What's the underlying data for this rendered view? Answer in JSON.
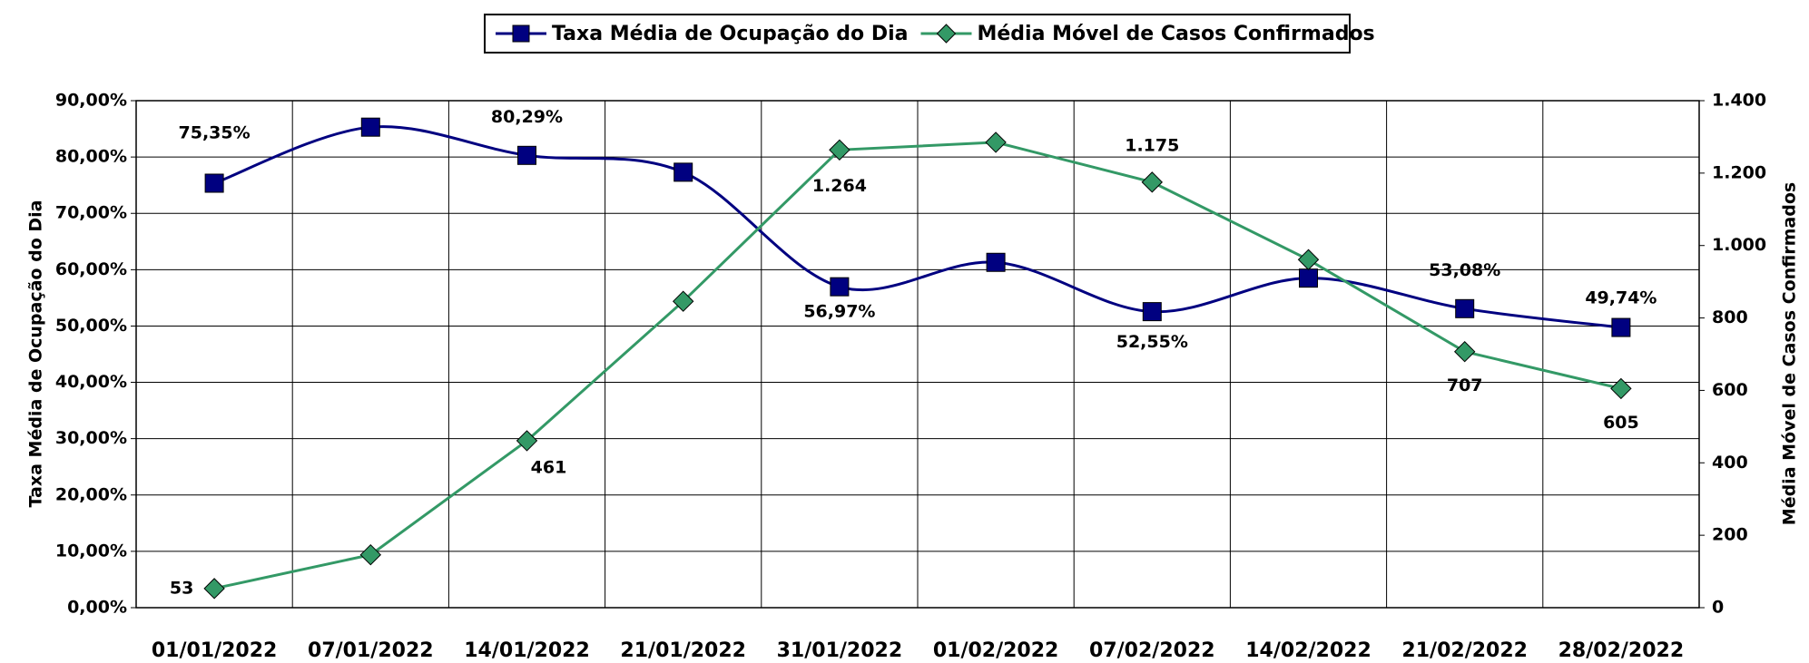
{
  "chart_data": {
    "type": "line",
    "categories": [
      "01/01/2022",
      "07/01/2022",
      "14/01/2022",
      "21/01/2022",
      "31/01/2022",
      "01/02/2022",
      "07/02/2022",
      "14/02/2022",
      "21/02/2022",
      "28/02/2022"
    ],
    "series": [
      {
        "name": "Taxa Média de Ocupação do Dia",
        "color": "#000080",
        "marker": "square",
        "smooth": true,
        "values": [
          75.35,
          85.3,
          80.29,
          77.3,
          56.97,
          61.3,
          52.55,
          58.5,
          53.08,
          49.74
        ],
        "value_labels": [
          "75,35%",
          null,
          "80,29%",
          null,
          "56,97%",
          null,
          "52,55%",
          null,
          "53,08%",
          "49,74%"
        ]
      },
      {
        "name": "Média Móvel de Casos Confirmados",
        "color": "#339966",
        "marker": "diamond",
        "smooth": false,
        "axis": "y2",
        "values": [
          53,
          146,
          461,
          846,
          1264,
          1285,
          1175,
          961,
          707,
          605
        ],
        "value_labels": [
          "53",
          null,
          "461",
          null,
          "1.264",
          null,
          "1.175",
          null,
          "707",
          "605"
        ]
      }
    ],
    "ylabel": "Taxa Média de Ocupação do Dia",
    "y2label": "Média Móvel de Casos Confirmados",
    "ylim": [
      0,
      90
    ],
    "yticks": [
      {
        "value": 0,
        "label": "0,00%"
      },
      {
        "value": 10,
        "label": "10,00%"
      },
      {
        "value": 20,
        "label": "20,00%"
      },
      {
        "value": 30,
        "label": "30,00%"
      },
      {
        "value": 40,
        "label": "40,00%"
      },
      {
        "value": 50,
        "label": "50,00%"
      },
      {
        "value": 60,
        "label": "60,00%"
      },
      {
        "value": 70,
        "label": "70,00%"
      },
      {
        "value": 80,
        "label": "80,00%"
      },
      {
        "value": 90,
        "label": "90,00%"
      }
    ],
    "y2lim": [
      0,
      1400
    ],
    "y2ticks": [
      0,
      200,
      400,
      600,
      800,
      {
        "value": 1000,
        "label": "1.000"
      },
      {
        "value": 1200,
        "label": "1.200"
      },
      {
        "value": 1400,
        "label": "1.400"
      }
    ],
    "grid": true,
    "legend": "top"
  }
}
